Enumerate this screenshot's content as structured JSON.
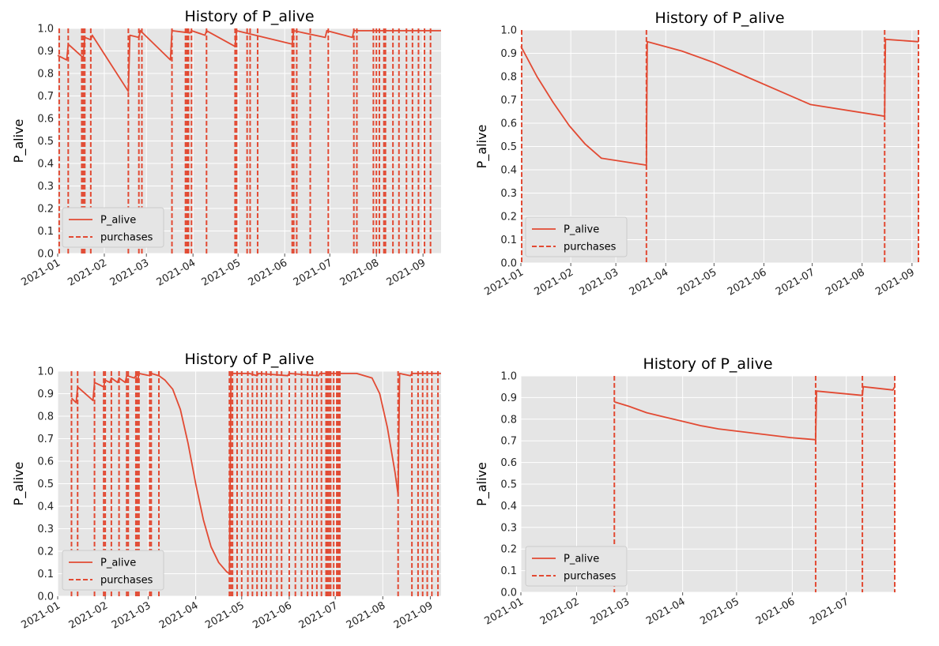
{
  "chart_data": [
    {
      "type": "line",
      "title": "History of P_alive",
      "ylabel": "P_alive",
      "xlabel": "",
      "ylim": [
        0,
        1
      ],
      "yticks": [
        "0.0",
        "0.1",
        "0.2",
        "0.3",
        "0.4",
        "0.5",
        "0.6",
        "0.7",
        "0.8",
        "0.9",
        "1.0"
      ],
      "xlim_days": [
        0,
        255
      ],
      "xticks": [
        "2021-01",
        "2021-02",
        "2021-03",
        "2021-04",
        "2021-05",
        "2021-06",
        "2021-07",
        "2021-08",
        "2021-09"
      ],
      "xtick_days": [
        0,
        31,
        59,
        90,
        120,
        151,
        181,
        212,
        243
      ],
      "legend": {
        "location": "lower-left",
        "line_label": "P_alive",
        "vline_label": "purchases"
      },
      "series": [
        {
          "name": "P_alive",
          "anchors": [
            [
              0,
              0.88
            ],
            [
              6,
              0.86
            ],
            [
              7,
              0.93
            ],
            [
              17,
              0.87
            ],
            [
              18,
              0.96
            ],
            [
              22,
              0.95
            ],
            [
              23,
              0.97
            ],
            [
              47,
              0.72
            ],
            [
              48,
              0.97
            ],
            [
              54,
              0.96
            ],
            [
              55,
              0.99
            ],
            [
              75,
              0.86
            ],
            [
              76,
              0.99
            ],
            [
              88,
              0.98
            ],
            [
              89,
              0.99
            ],
            [
              98,
              0.97
            ],
            [
              99,
              0.99
            ],
            [
              118,
              0.92
            ],
            [
              119,
              0.99
            ],
            [
              156,
              0.93
            ],
            [
              157,
              0.99
            ],
            [
              178,
              0.96
            ],
            [
              179,
              0.99
            ],
            [
              196,
              0.96
            ],
            [
              197,
              0.99
            ],
            [
              255,
              0.99
            ]
          ]
        }
      ],
      "purchases": [
        1,
        7,
        16,
        17,
        18,
        22,
        47,
        54,
        56,
        76,
        85,
        86,
        87,
        89,
        99,
        118,
        119,
        126,
        128,
        133,
        156,
        157,
        159,
        168,
        180,
        197,
        199,
        210,
        212,
        214,
        217,
        218,
        223,
        227,
        232,
        236,
        240,
        244,
        248
      ]
    },
    {
      "type": "line",
      "title": "History of P_alive",
      "ylabel": "P_alive",
      "xlabel": "",
      "ylim": [
        0,
        1
      ],
      "yticks": [
        "0.0",
        "0.1",
        "0.2",
        "0.3",
        "0.4",
        "0.5",
        "0.6",
        "0.7",
        "0.8",
        "0.9",
        "1.0"
      ],
      "xlim_days": [
        0,
        247
      ],
      "xticks": [
        "2021-01",
        "2021-02",
        "2021-03",
        "2021-04",
        "2021-05",
        "2021-06",
        "2021-07",
        "2021-08",
        "2021-09"
      ],
      "xtick_days": [
        0,
        31,
        59,
        90,
        120,
        151,
        181,
        212,
        243
      ],
      "legend": {
        "location": "lower-left",
        "line_label": "P_alive",
        "vline_label": "purchases"
      },
      "series": [
        {
          "name": "P_alive",
          "anchors": [
            [
              0,
              0.93
            ],
            [
              10,
              0.8
            ],
            [
              20,
              0.69
            ],
            [
              30,
              0.59
            ],
            [
              40,
              0.51
            ],
            [
              50,
              0.45
            ],
            [
              78,
              0.42
            ],
            [
              78.5,
              0.95
            ],
            [
              100,
              0.91
            ],
            [
              120,
              0.86
            ],
            [
              140,
              0.8
            ],
            [
              160,
              0.74
            ],
            [
              180,
              0.68
            ],
            [
              226,
              0.63
            ],
            [
              226.5,
              0.96
            ],
            [
              247,
              0.95
            ]
          ]
        }
      ],
      "purchases": [
        0.5,
        78,
        226,
        247
      ]
    },
    {
      "type": "line",
      "title": "History of P_alive",
      "ylabel": "P_alive",
      "xlabel": "",
      "ylim": [
        0,
        1
      ],
      "yticks": [
        "0.0",
        "0.1",
        "0.2",
        "0.3",
        "0.4",
        "0.5",
        "0.6",
        "0.7",
        "0.8",
        "0.9",
        "1.0"
      ],
      "xlim_days": [
        0,
        250
      ],
      "xticks": [
        "2021-01",
        "2021-02",
        "2021-03",
        "2021-04",
        "2021-05",
        "2021-06",
        "2021-07",
        "2021-08",
        "2021-09"
      ],
      "xtick_days": [
        0,
        31,
        59,
        90,
        120,
        151,
        181,
        212,
        243
      ],
      "legend": {
        "location": "lower-left",
        "line_label": "P_alive",
        "vline_label": "purchases"
      },
      "series": [
        {
          "name": "P_alive",
          "anchors": [
            [
              9,
              0.88
            ],
            [
              12,
              0.86
            ],
            [
              13,
              0.93
            ],
            [
              23,
              0.87
            ],
            [
              24,
              0.95
            ],
            [
              30,
              0.93
            ],
            [
              31,
              0.96
            ],
            [
              34,
              0.95
            ],
            [
              35,
              0.97
            ],
            [
              39,
              0.95
            ],
            [
              40,
              0.97
            ],
            [
              44,
              0.95
            ],
            [
              45,
              0.98
            ],
            [
              50,
              0.97
            ],
            [
              51,
              0.98
            ],
            [
              52,
              0.95
            ],
            [
              53,
              0.99
            ],
            [
              60,
              0.98
            ],
            [
              61,
              0.99
            ],
            [
              66,
              0.98
            ],
            [
              70,
              0.96
            ],
            [
              75,
              0.92
            ],
            [
              80,
              0.83
            ],
            [
              85,
              0.68
            ],
            [
              90,
              0.5
            ],
            [
              95,
              0.34
            ],
            [
              100,
              0.22
            ],
            [
              105,
              0.15
            ],
            [
              110,
              0.11
            ],
            [
              112,
              0.1
            ],
            [
              113,
              0.99
            ],
            [
              125,
              0.99
            ],
            [
              130,
              0.98
            ],
            [
              131,
              0.99
            ],
            [
              150,
              0.98
            ],
            [
              151,
              0.99
            ],
            [
              170,
              0.98
            ],
            [
              171,
              0.99
            ],
            [
              195,
              0.99
            ],
            [
              205,
              0.97
            ],
            [
              210,
              0.9
            ],
            [
              215,
              0.75
            ],
            [
              220,
              0.55
            ],
            [
              222,
              0.45
            ],
            [
              223,
              0.99
            ],
            [
              230,
              0.98
            ],
            [
              231,
              0.99
            ],
            [
              250,
              0.99
            ]
          ]
        }
      ],
      "purchases": [
        9,
        13,
        24,
        30,
        31,
        35,
        40,
        45,
        46,
        51,
        52,
        53,
        60,
        61,
        66,
        112,
        113,
        114,
        117,
        120,
        124,
        127,
        130,
        133,
        136,
        139,
        143,
        146,
        151,
        155,
        159,
        163,
        166,
        169,
        172,
        175,
        176,
        177,
        178,
        180,
        182,
        183,
        184,
        222,
        231,
        235,
        238,
        241,
        244,
        248
      ]
    },
    {
      "type": "line",
      "title": "History of P_alive",
      "ylabel": "P_alive",
      "xlabel": "",
      "ylim": [
        0,
        1
      ],
      "yticks": [
        "0.0",
        "0.1",
        "0.2",
        "0.3",
        "0.4",
        "0.5",
        "0.6",
        "0.7",
        "0.8",
        "0.9",
        "1.0"
      ],
      "xlim_days": [
        0,
        208
      ],
      "xticks": [
        "2021-01",
        "2021-02",
        "2021-03",
        "2021-04",
        "2021-05",
        "2021-06",
        "2021-07"
      ],
      "xtick_days": [
        0,
        31,
        59,
        90,
        120,
        151,
        181
      ],
      "legend": {
        "location": "lower-left",
        "line_label": "P_alive",
        "vline_label": "purchases"
      },
      "series": [
        {
          "name": "P_alive",
          "anchors": [
            [
              52,
              0.88
            ],
            [
              60,
              0.86
            ],
            [
              70,
              0.83
            ],
            [
              80,
              0.81
            ],
            [
              90,
              0.79
            ],
            [
              100,
              0.77
            ],
            [
              110,
              0.755
            ],
            [
              120,
              0.745
            ],
            [
              130,
              0.735
            ],
            [
              140,
              0.725
            ],
            [
              150,
              0.715
            ],
            [
              164,
              0.705
            ],
            [
              164.5,
              0.93
            ],
            [
              190,
              0.91
            ],
            [
              190.5,
              0.95
            ],
            [
              207,
              0.935
            ],
            [
              208,
              0.95
            ]
          ]
        }
      ],
      "purchases": [
        52,
        164,
        190,
        208
      ]
    }
  ]
}
